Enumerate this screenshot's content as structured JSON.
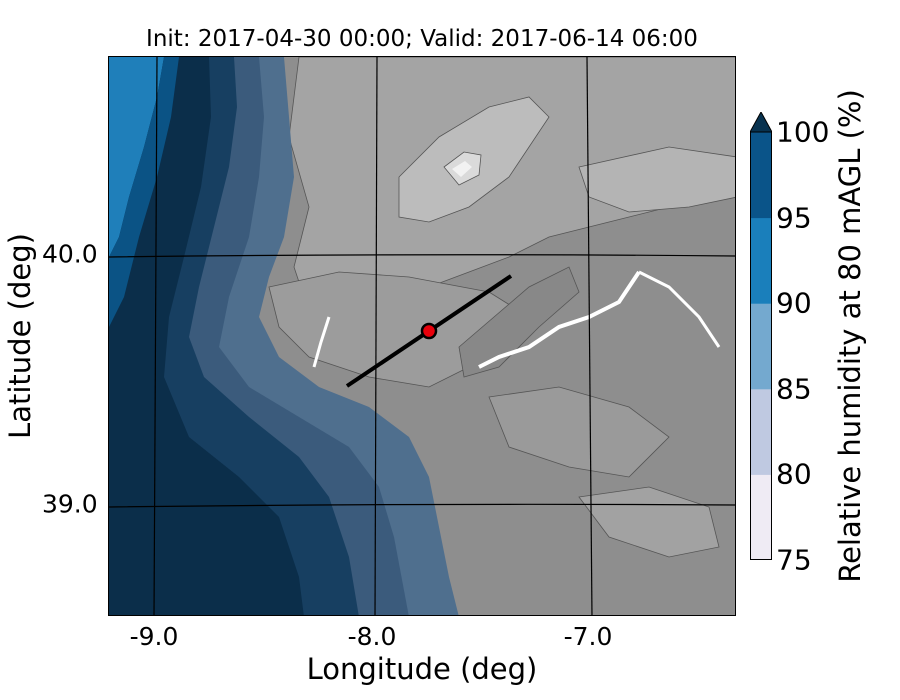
{
  "title": "Init: 2017-04-30 00:00; Valid: 2017-06-14 06:00",
  "axes": {
    "x_label": "Longitude (deg)",
    "y_label": "Latitude (deg)",
    "x_ticks": [
      "-9.0",
      "-8.0",
      "-7.0"
    ],
    "y_ticks": [
      "40.0",
      "39.0"
    ]
  },
  "colorbar": {
    "label": "Relative humidity at 80 mAGL (%)",
    "ticks": [
      "75",
      "80",
      "85",
      "90",
      "95",
      "100"
    ],
    "colors": [
      "#efebf4",
      "#bfc9e1",
      "#74a9cf",
      "#1a7fbb",
      "#0a5489",
      "#08324f"
    ],
    "extend": "max"
  },
  "map": {
    "transect": {
      "start": [
        -8.12,
        39.48
      ],
      "end": [
        -7.35,
        39.92
      ]
    },
    "site_marker": {
      "lon": -7.74,
      "lat": 39.71,
      "color": "#e8000b"
    },
    "land_grays": [
      "#8c8c8c",
      "#9a9a9a",
      "#a8a8a8",
      "#b6b6b6",
      "#c8c8c8",
      "#e4e4e4"
    ]
  }
}
